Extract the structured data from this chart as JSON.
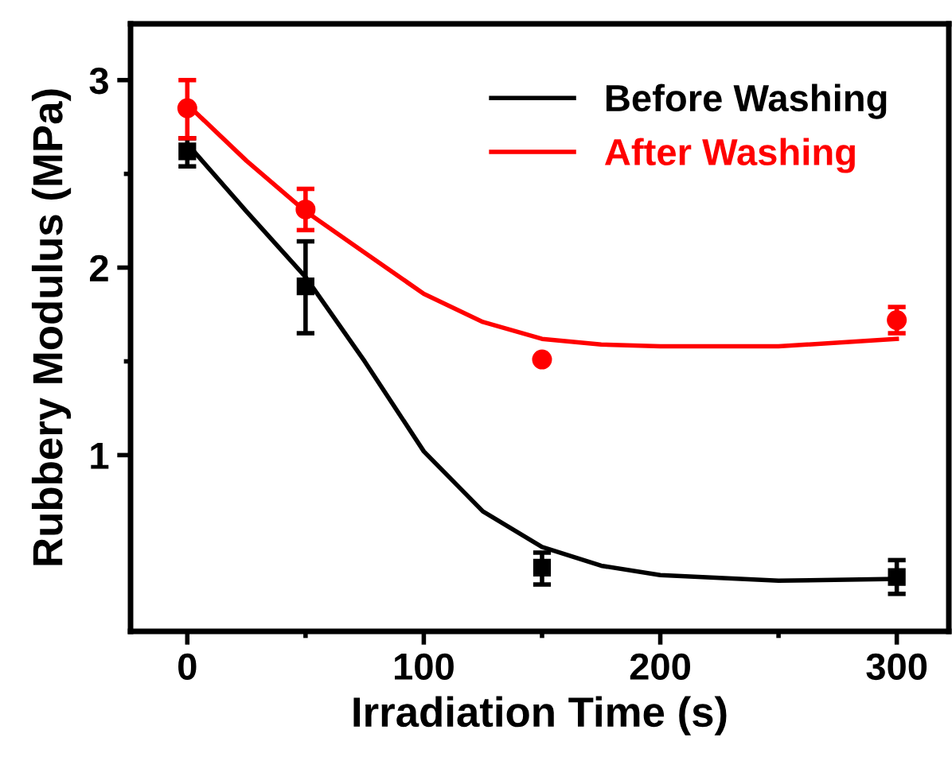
{
  "chart_data": {
    "type": "scatter",
    "xlabel": "Irradiation Time (s)",
    "ylabel": "Rubbery Modulus (MPa)",
    "xlim": [
      -24,
      322
    ],
    "ylim": [
      0.06,
      3.3
    ],
    "xticks": [
      0,
      100,
      200,
      300
    ],
    "yticks": [
      1,
      2,
      3
    ],
    "grid": false,
    "legend": "top right",
    "series": [
      {
        "marker": "square",
        "color": "#000000",
        "x": [
          0,
          50,
          150,
          300
        ],
        "values": [
          2.62,
          1.9,
          0.4,
          0.35
        ],
        "errors": [
          [
            2.54,
            2.69
          ],
          [
            1.65,
            2.14
          ],
          [
            0.31,
            0.48
          ],
          [
            0.26,
            0.44
          ]
        ]
      },
      {
        "marker": "circle",
        "color": "#ff0000",
        "x": [
          0,
          50,
          150,
          300
        ],
        "values": [
          2.85,
          2.31,
          1.51,
          1.72
        ],
        "errors": [
          [
            2.69,
            3.0
          ],
          [
            2.2,
            2.42
          ],
          null,
          [
            1.65,
            1.79
          ]
        ]
      },
      {
        "type": "line",
        "name": "Before Washing",
        "color": "#000000",
        "x": [
          0,
          25,
          50,
          75,
          100,
          125,
          150,
          175,
          200,
          250,
          300
        ],
        "values": [
          2.66,
          2.3,
          1.95,
          1.5,
          1.02,
          0.7,
          0.51,
          0.41,
          0.36,
          0.33,
          0.34
        ]
      },
      {
        "type": "line",
        "name": "After Washing",
        "color": "#ff0000",
        "x": [
          0,
          25,
          50,
          75,
          100,
          125,
          150,
          175,
          200,
          250,
          300
        ],
        "values": [
          2.87,
          2.57,
          2.3,
          2.08,
          1.86,
          1.71,
          1.62,
          1.59,
          1.58,
          1.58,
          1.62
        ]
      }
    ]
  }
}
